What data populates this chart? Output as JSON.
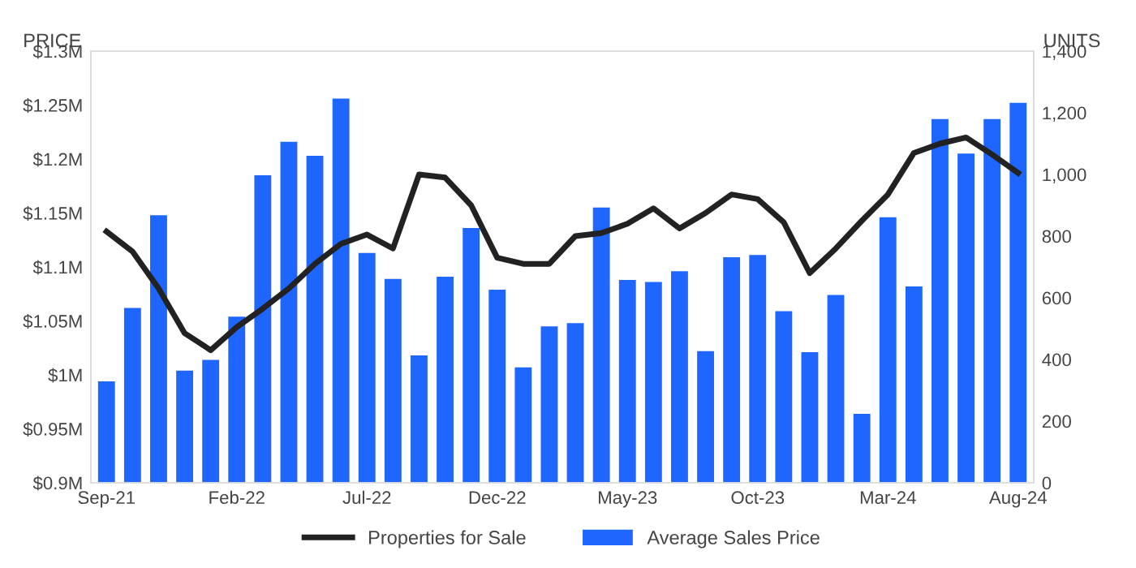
{
  "chart_data": {
    "type": "bar",
    "ylabel": "PRICE",
    "y2label": "UNITS",
    "categories": [
      "Sep-21",
      null,
      null,
      null,
      null,
      "Feb-22",
      null,
      null,
      null,
      null,
      "Jul-22",
      null,
      null,
      null,
      null,
      "Dec-22",
      null,
      null,
      null,
      null,
      "May-23",
      null,
      null,
      null,
      null,
      "Oct-23",
      null,
      null,
      null,
      null,
      "Mar-24",
      null,
      null,
      null,
      null,
      "Aug-24"
    ],
    "series": [
      {
        "name": "Average Sales Price",
        "color": "#1f66ff",
        "values": [
          0.994,
          1.062,
          1.148,
          1.004,
          1.014,
          1.054,
          1.185,
          1.216,
          1.203,
          1.256,
          1.113,
          1.089,
          1.018,
          1.091,
          1.136,
          1.079,
          1.007,
          1.045,
          1.048,
          1.155,
          1.088,
          1.086,
          1.096,
          1.022,
          1.109,
          1.111,
          1.059,
          1.021,
          1.074,
          0.964,
          1.146,
          1.082,
          1.237,
          1.205,
          1.237,
          1.252
        ]
      },
      {
        "name": "Properties for Sale",
        "type": "line",
        "axis": "y2",
        "color": "#222222",
        "values": [
          815,
          750,
          630,
          485,
          430,
          505,
          565,
          630,
          710,
          775,
          805,
          760,
          1000,
          990,
          900,
          730,
          710,
          710,
          800,
          810,
          840,
          890,
          825,
          875,
          935,
          920,
          845,
          680,
          760,
          850,
          935,
          1070,
          1100,
          1120,
          1065,
          1005
        ]
      }
    ],
    "ylim": [
      0.9,
      1.3
    ],
    "yticks": [
      {
        "value": 0.9,
        "label": "$0.9M"
      },
      {
        "value": 0.95,
        "label": "$0.95M"
      },
      {
        "value": 1.0,
        "label": "$1M"
      },
      {
        "value": 1.05,
        "label": "$1.05M"
      },
      {
        "value": 1.1,
        "label": "$1.1M"
      },
      {
        "value": 1.15,
        "label": "$1.15M"
      },
      {
        "value": 1.2,
        "label": "$1.2M"
      },
      {
        "value": 1.25,
        "label": "$1.25M"
      },
      {
        "value": 1.3,
        "label": "$1.3M"
      }
    ],
    "y2lim": [
      0,
      1400
    ],
    "y2ticks": [
      {
        "value": 0,
        "label": "0"
      },
      {
        "value": 200,
        "label": "200"
      },
      {
        "value": 400,
        "label": "400"
      },
      {
        "value": 600,
        "label": "600"
      },
      {
        "value": 800,
        "label": "800"
      },
      {
        "value": 1000,
        "label": "1,000"
      },
      {
        "value": 1200,
        "label": "1,200"
      },
      {
        "value": 1400,
        "label": "1,400"
      }
    ],
    "grid": false,
    "legend": "bottom",
    "marker": "none",
    "line_style": "solid"
  }
}
